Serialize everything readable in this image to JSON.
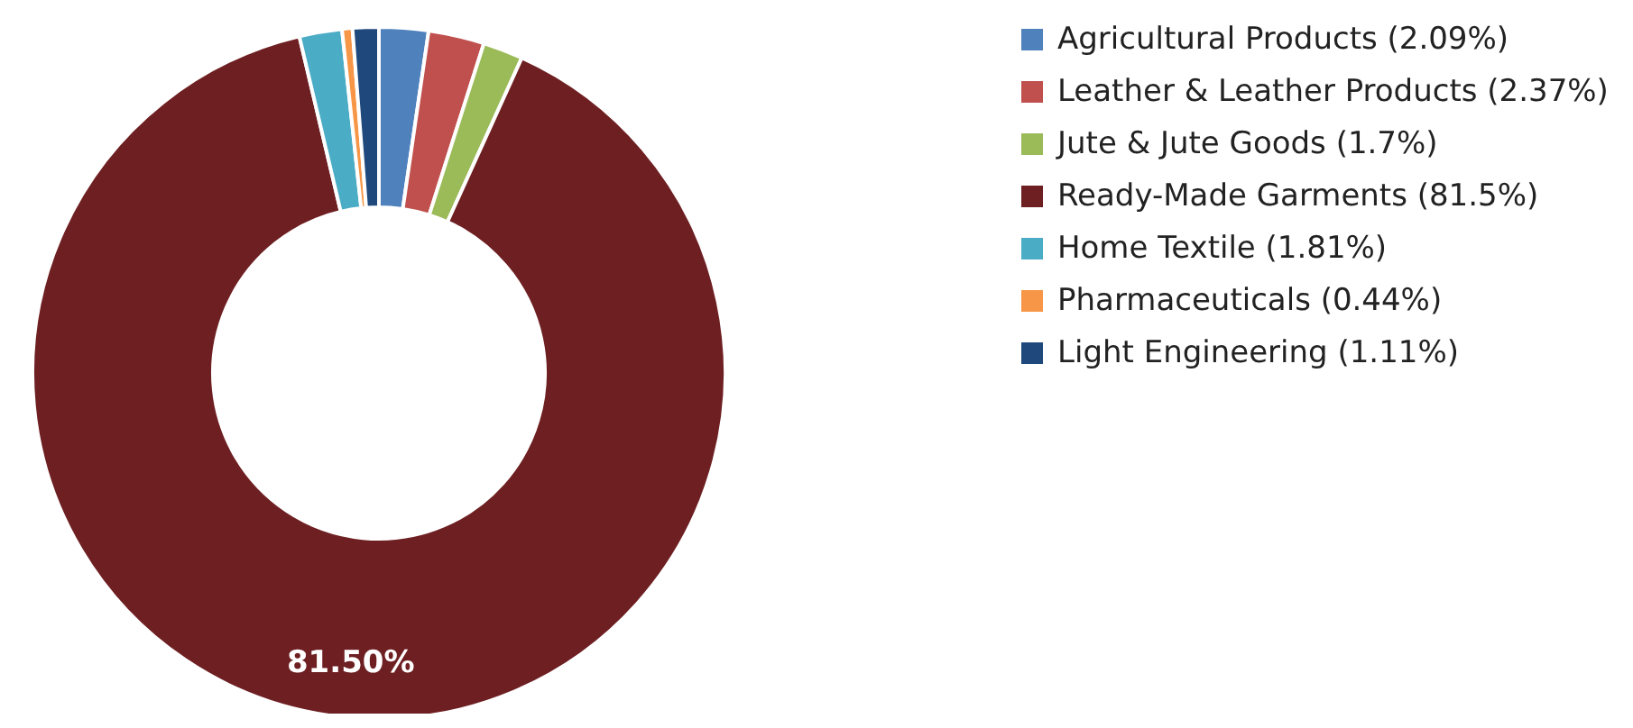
{
  "chart_data": {
    "type": "donut",
    "categories": [
      "Agricultural Products (2.09%)",
      "Leather & Leather Products (2.37%)",
      "Jute & Jute Goods (1.7%)",
      "Ready-Made Garments (81.5%)",
      "Home Textile (1.81%)",
      "Pharmaceuticals (0.44%)",
      "Light Engineering (1.11%)"
    ],
    "values": [
      2.09,
      2.37,
      1.7,
      81.5,
      1.81,
      0.44,
      1.11
    ],
    "colors": [
      "#4f81bd",
      "#c0504d",
      "#9bbb59",
      "#6e1f22",
      "#4bacc6",
      "#f79646",
      "#1f497d"
    ],
    "value_labels": [
      null,
      null,
      null,
      "81.50%",
      null,
      null,
      null
    ],
    "legend": "top right"
  }
}
